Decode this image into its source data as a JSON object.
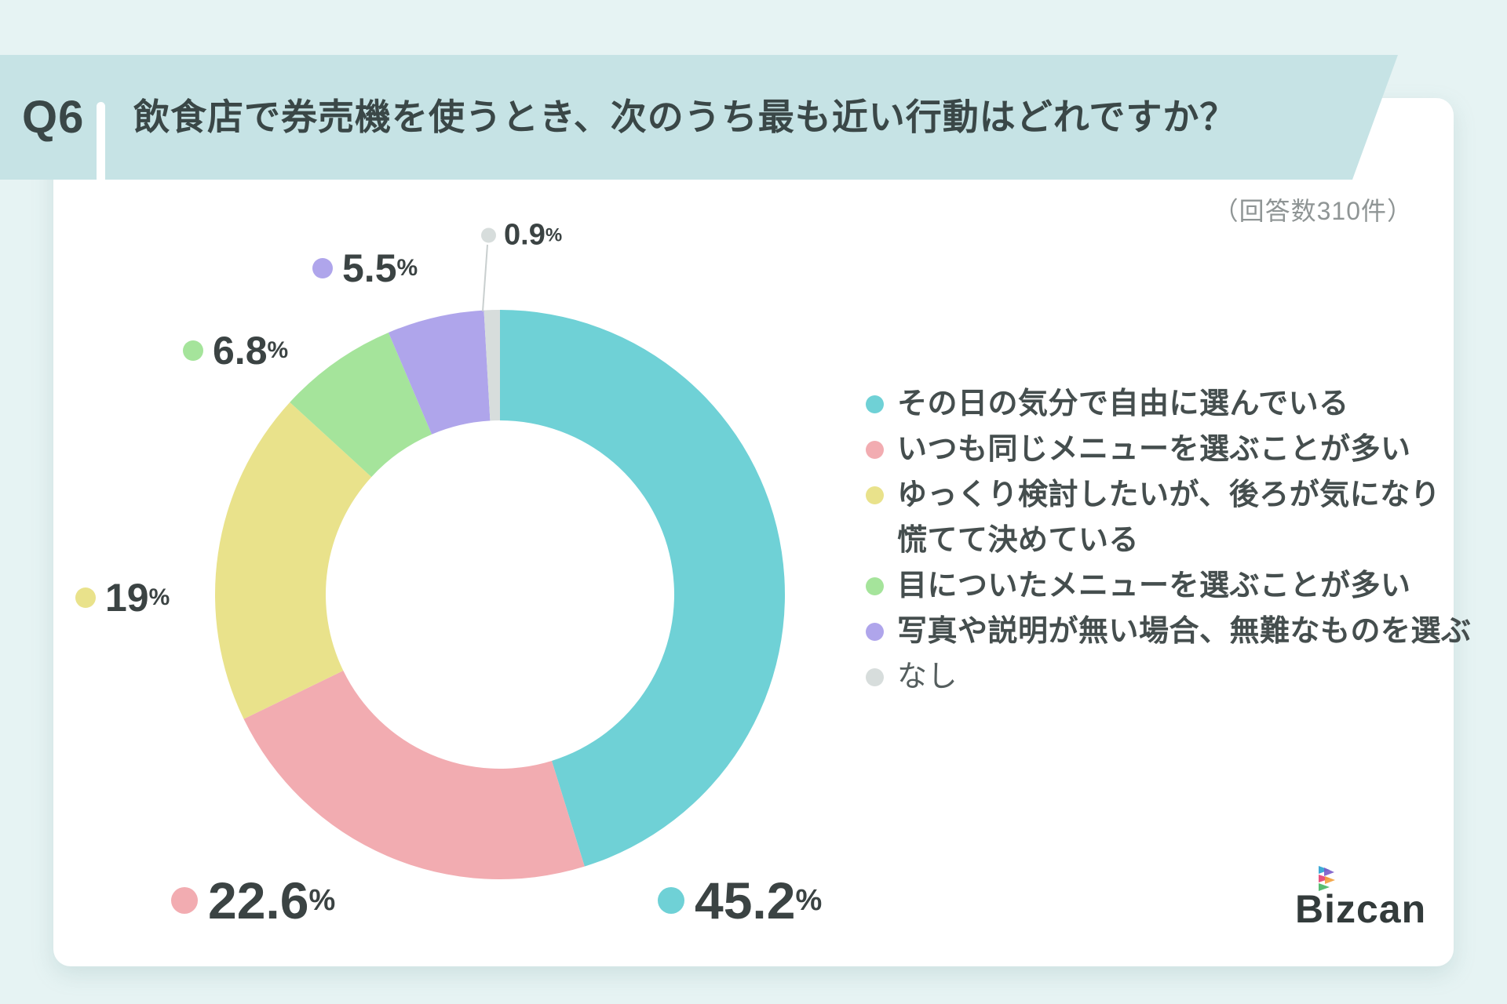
{
  "header": {
    "q_label": "Q6",
    "question": "飲食店で券売機を使うとき、次のうち最も近い行動はどれですか？"
  },
  "response_note": "（回答数310件）",
  "percent_sign": "%",
  "chart_data": {
    "type": "pie",
    "subtype": "donut",
    "title": "飲食店で券売機を使うとき、次のうち最も近い行動はどれですか？",
    "sample_size_note": "（回答数310件）",
    "unit": "%",
    "direction": "clockwise",
    "start_angle": "12-oclock",
    "legend_position": "right",
    "series": [
      {
        "label": "その日の気分で自由に選んでいる",
        "value": 45.2,
        "display": "45.2",
        "color": "#6FD1D6"
      },
      {
        "label": "いつも同じメニューを選ぶことが多い",
        "value": 22.6,
        "display": "22.6",
        "color": "#F2ACB1"
      },
      {
        "label": "ゆっくり検討したいが、後ろが気になり\n慌てて決めている",
        "value": 19,
        "display": "19",
        "color": "#E9E28B"
      },
      {
        "label": "目についたメニューを選ぶことが多い",
        "value": 6.8,
        "display": "6.8",
        "color": "#A5E49B"
      },
      {
        "label": "写真や説明が無い場合、無難なものを選ぶ",
        "value": 5.5,
        "display": "5.5",
        "color": "#AFA5EB"
      },
      {
        "label": "なし",
        "value": 0.9,
        "display": "0.9",
        "color": "#D7DDDC"
      }
    ]
  },
  "logo": {
    "text": "Bizcan"
  }
}
